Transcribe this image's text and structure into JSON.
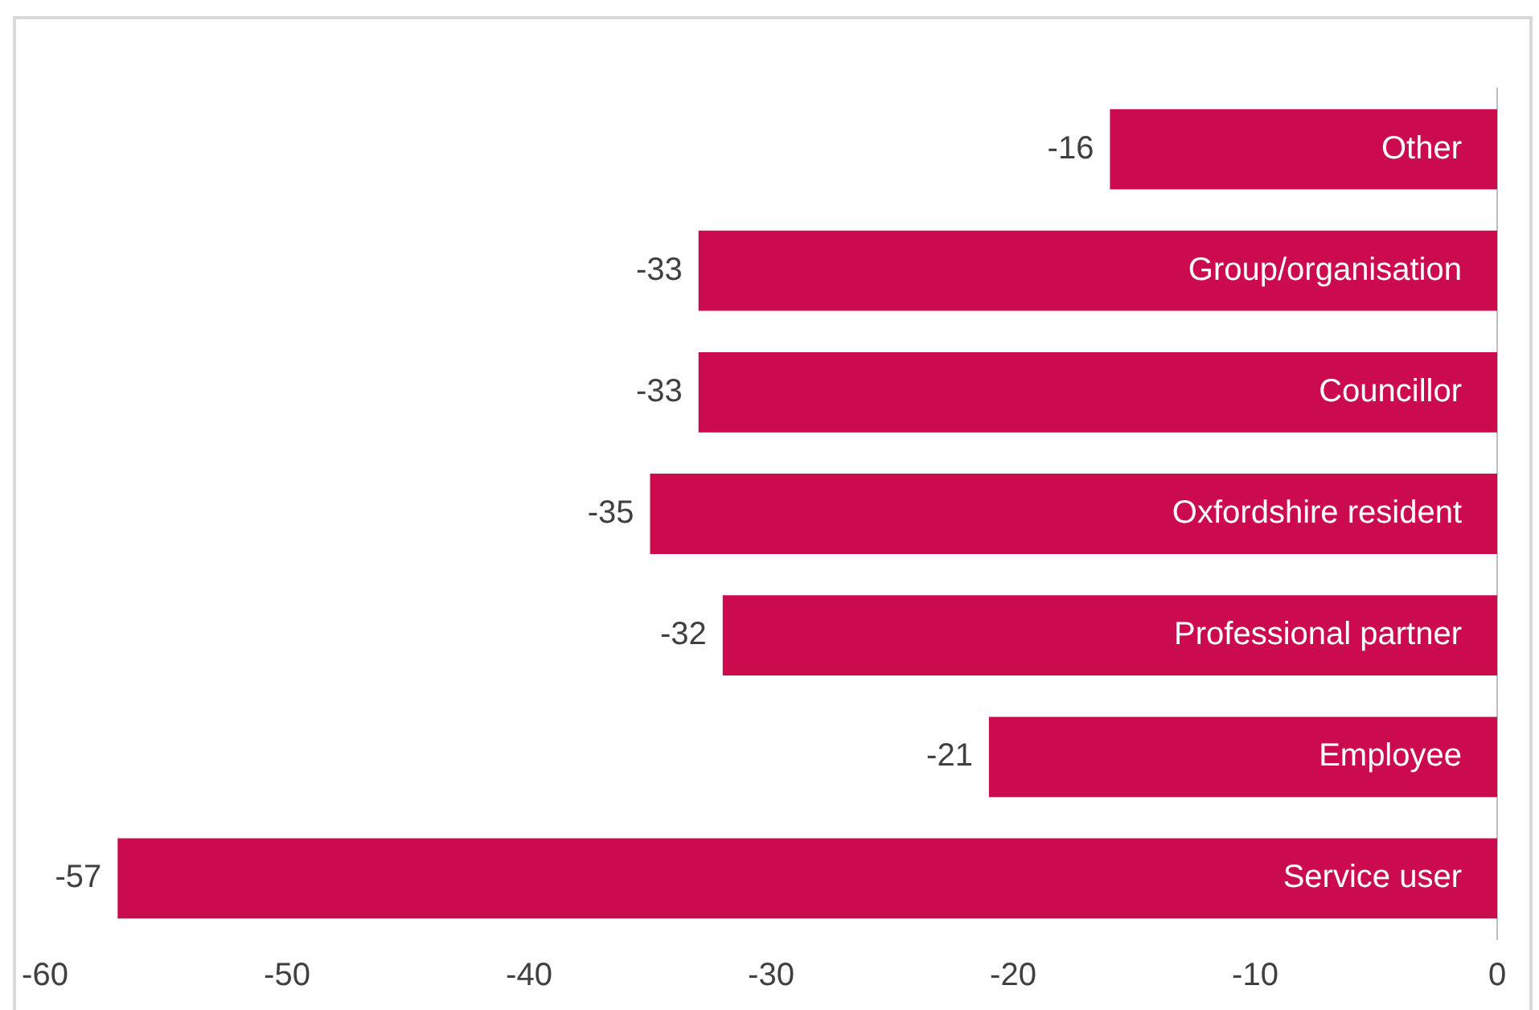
{
  "chart_data": {
    "type": "bar",
    "orientation": "horizontal",
    "categories": [
      "Other",
      "Group/organisation",
      "Councillor",
      "Oxfordshire resident",
      "Professional partner",
      "Employee",
      "Service user"
    ],
    "values": [
      -16,
      -33,
      -33,
      -35,
      -32,
      -21,
      -57
    ],
    "color": "#cc0a4e",
    "xlim": [
      -60,
      0
    ],
    "xticks": [
      -60,
      -50,
      -40,
      -30,
      -20,
      -10,
      0
    ],
    "grid": false,
    "data_labels": true
  }
}
